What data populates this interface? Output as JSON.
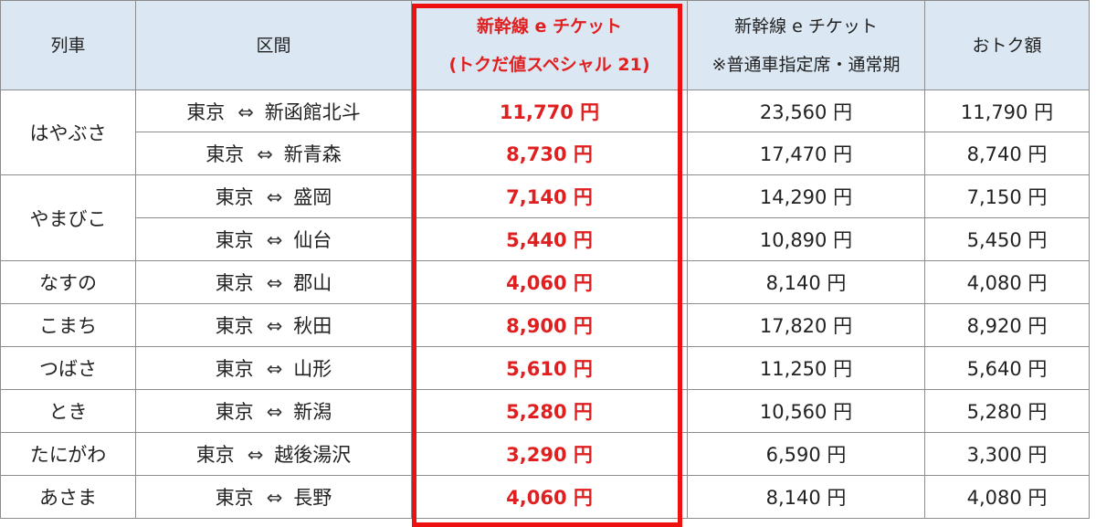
{
  "headers": {
    "train": "列車",
    "section": "区間",
    "special_line1": "新幹線 e チケット",
    "special_line2": "(トクだ値スペシャル 21)",
    "normal_line1": "新幹線 e チケット",
    "normal_line2": "※普通車指定席・通常期",
    "saving": "おトク額"
  },
  "arrow_symbol": "⇔",
  "colors": {
    "highlight": "#ee1111",
    "header_bg": "#dbe8f3"
  },
  "rows": [
    {
      "train": "はやぶさ",
      "from": "東京",
      "to": "新函館北斗",
      "special": "11,770 円",
      "normal": "23,560 円",
      "saving": "11,790 円"
    },
    {
      "train": "",
      "from": "東京",
      "to": "新青森",
      "special": "8,730 円",
      "normal": "17,470 円",
      "saving": "8,740 円"
    },
    {
      "train": "やまびこ",
      "from": "東京",
      "to": "盛岡",
      "special": "7,140 円",
      "normal": "14,290 円",
      "saving": "7,150 円"
    },
    {
      "train": "",
      "from": "東京",
      "to": "仙台",
      "special": "5,440 円",
      "normal": "10,890 円",
      "saving": "5,450 円"
    },
    {
      "train": "なすの",
      "from": "東京",
      "to": "郡山",
      "special": "4,060 円",
      "normal": "8,140 円",
      "saving": "4,080 円"
    },
    {
      "train": "こまち",
      "from": "東京",
      "to": "秋田",
      "special": "8,900 円",
      "normal": "17,820 円",
      "saving": "8,920 円"
    },
    {
      "train": "つばさ",
      "from": "東京",
      "to": "山形",
      "special": "5,610 円",
      "normal": "11,250 円",
      "saving": "5,640 円"
    },
    {
      "train": "とき",
      "from": "東京",
      "to": "新潟",
      "special": "5,280 円",
      "normal": "10,560 円",
      "saving": "5,280 円"
    },
    {
      "train": "たにがわ",
      "from": "東京",
      "to": "越後湯沢",
      "special": "3,290 円",
      "normal": "6,590 円",
      "saving": "3,300 円"
    },
    {
      "train": "あさま",
      "from": "東京",
      "to": "長野",
      "special": "4,060 円",
      "normal": "8,140 円",
      "saving": "4,080 円"
    }
  ]
}
